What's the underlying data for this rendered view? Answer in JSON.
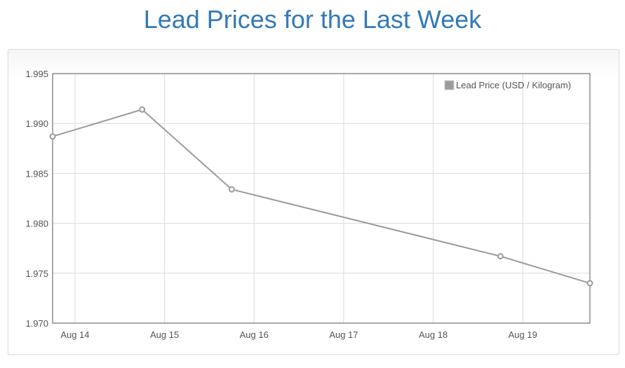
{
  "title": "Lead Prices for the Last Week",
  "colors": {
    "title": "#337ab7",
    "series": "#9b9b9b",
    "grid": "#dcdcdc",
    "axis": "#545454"
  },
  "chart_data": {
    "type": "line",
    "title": "Lead Prices for the Last Week",
    "xlabel": "",
    "ylabel": "",
    "ylim": [
      1.97,
      1.995
    ],
    "yticks": [
      "1.995",
      "1.990",
      "1.985",
      "1.980",
      "1.975",
      "1.970"
    ],
    "xlim": [
      "2023-08-13T18:00",
      "2023-08-19T18:00"
    ],
    "xticks": [
      "Aug 14",
      "Aug 15",
      "Aug 16",
      "Aug 17",
      "Aug 18",
      "Aug 19"
    ],
    "grid": true,
    "legend_position": "top-right",
    "series": [
      {
        "name": "Lead Price (USD / Kilogram)",
        "points": [
          {
            "x": "2023-08-13T18:00",
            "y": 1.9887
          },
          {
            "x": "2023-08-14T18:00",
            "y": 1.9914
          },
          {
            "x": "2023-08-15T18:00",
            "y": 1.9834
          },
          {
            "x": "2023-08-18T18:00",
            "y": 1.9767
          },
          {
            "x": "2023-08-19T18:00",
            "y": 1.974
          }
        ]
      }
    ]
  }
}
